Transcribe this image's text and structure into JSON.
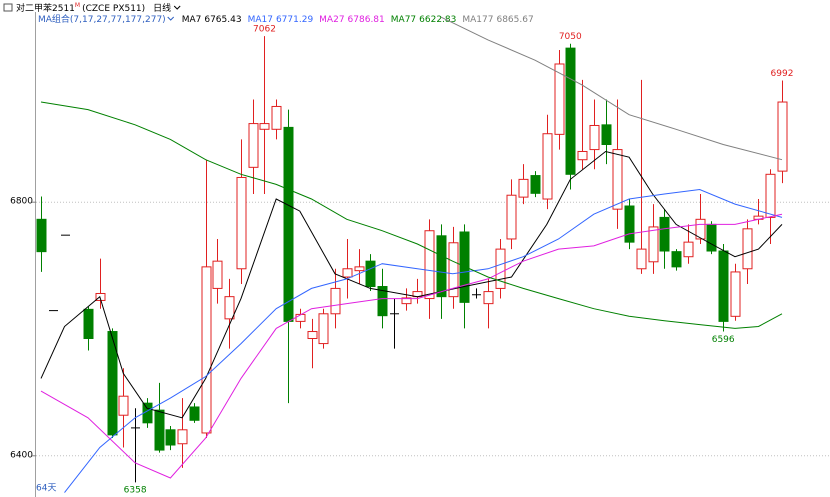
{
  "chart_data": {
    "type": "candlestick",
    "title": "对二甲苯2511",
    "title_superscript": "M",
    "subtitle": "(CZCE PX511)",
    "period": "日线",
    "ma_group": "MA组合(7,17,27,77,177,277)",
    "range_label": "64天",
    "ylim": [
      6335,
      7100
    ],
    "yticks": [
      6400,
      6800
    ],
    "grid": true,
    "up_color": "#e02020",
    "down_color": "#008000",
    "flat_color": "#000000",
    "labeled_highs": [
      19,
      45,
      63
    ],
    "labeled_lows": [
      8,
      58
    ],
    "open": [
      6773,
      6629,
      6748,
      null,
      6631,
      6645,
      6596,
      6464,
      6444,
      6483,
      6472,
      6441,
      6419,
      6477,
      6436,
      6664,
      6616,
      6695,
      6855,
      6915,
      6915,
      6918,
      6612,
      6585,
      6577,
      6624,
      6682,
      6692,
      6707,
      6667,
      6624,
      6640,
      6651,
      6648,
      6747,
      6651,
      6753,
      6654,
      6640,
      6664,
      6742,
      6808,
      6842,
      6805,
      6907,
      7043,
      6867,
      6883,
      6922,
      6789,
      6794,
      6695,
      6706,
      6776,
      6722,
      6714,
      6742,
      6765,
      6723,
      6620,
      6695,
      6773,
      6776,
      6849
    ],
    "high": [
      6809,
      6629,
      6748,
      null,
      6635,
      6711,
      6601,
      6538,
      6475,
      6491,
      6515,
      6447,
      6491,
      6483,
      6867,
      6742,
      6679,
      6899,
      6962,
      7062,
      6962,
      6946,
      6632,
      6616,
      6632,
      6695,
      6742,
      6726,
      6718,
      6695,
      6648,
      6664,
      6679,
      6773,
      6765,
      6761,
      6765,
      6664,
      6679,
      6742,
      6836,
      6860,
      6849,
      6938,
      7040,
      7050,
      6993,
      6962,
      6962,
      6962,
      6805,
      6993,
      6797,
      6789,
      6726,
      6765,
      6813,
      6770,
      6734,
      6703,
      6773,
      6805,
      6852,
      6992
    ],
    "low": [
      6690,
      6629,
      6748,
      null,
      6566,
      6632,
      6428,
      6413,
      6358,
      6444,
      6405,
      6409,
      6381,
      6452,
      6428,
      6640,
      6569,
      6671,
      6813,
      6813,
      6899,
      6483,
      6601,
      6538,
      6569,
      6601,
      6648,
      6671,
      6660,
      6601,
      6569,
      6629,
      6640,
      6616,
      6616,
      6632,
      6601,
      6648,
      6601,
      6648,
      6726,
      6797,
      6808,
      6789,
      6883,
      6820,
      6852,
      6852,
      6860,
      6758,
      6726,
      6687,
      6687,
      6695,
      6692,
      6703,
      6734,
      6718,
      6596,
      6613,
      6671,
      6765,
      6734,
      6830
    ],
    "close": [
      6722,
      6629,
      6748,
      null,
      6585,
      6656,
      6433,
      6494,
      6444,
      6452,
      6409,
      6417,
      6441,
      6456,
      6698,
      6707,
      6651,
      6839,
      6924,
      6924,
      6951,
      6612,
      6623,
      6596,
      6624,
      6664,
      6695,
      6698,
      6667,
      6621,
      6624,
      6649,
      6659,
      6755,
      6651,
      6736,
      6642,
      6654,
      6659,
      6726,
      6811,
      6836,
      6814,
      6908,
      7018,
      6844,
      6880,
      6921,
      6891,
      6883,
      6737,
      6726,
      6761,
      6723,
      6698,
      6737,
      6773,
      6723,
      6612,
      6690,
      6758,
      6778,
      6844,
      6958
    ],
    "series": [
      {
        "name": "MA7",
        "color": "#000000",
        "last_value": 6765.43,
        "x": [
          0,
          2,
          5,
          7,
          9,
          12,
          14,
          17,
          20,
          22,
          25,
          28,
          32,
          36,
          40,
          43,
          45,
          48,
          50,
          52,
          54,
          57,
          59,
          61,
          63
        ],
        "values": [
          6522,
          6604,
          6651,
          6530,
          6475,
          6460,
          6522,
          6648,
          6805,
          6786,
          6687,
          6664,
          6651,
          6667,
          6682,
          6765,
          6836,
          6880,
          6871,
          6813,
          6765,
          6734,
          6714,
          6726,
          6765
        ]
      },
      {
        "name": "MA17",
        "color": "#3366ff",
        "last_value": 6771.29,
        "x": [
          2,
          5,
          8,
          11,
          14,
          17,
          20,
          23,
          26,
          29,
          32,
          35,
          38,
          41,
          44,
          47,
          50,
          53,
          56,
          59,
          63
        ],
        "values": [
          6342,
          6413,
          6460,
          6491,
          6525,
          6577,
          6632,
          6664,
          6679,
          6703,
          6695,
          6687,
          6695,
          6714,
          6742,
          6781,
          6805,
          6813,
          6820,
          6797,
          6776
        ]
      },
      {
        "name": "MA27",
        "color": "#e020e0",
        "last_value": 6786.81,
        "x": [
          0,
          4,
          8,
          11,
          14,
          17,
          20,
          23,
          26,
          29,
          32,
          35,
          38,
          41,
          44,
          47,
          50,
          53,
          56,
          59,
          63
        ],
        "values": [
          6502,
          6460,
          6389,
          6365,
          6428,
          6522,
          6601,
          6632,
          6640,
          6648,
          6648,
          6664,
          6679,
          6707,
          6726,
          6731,
          6750,
          6758,
          6765,
          6765,
          6781
        ]
      },
      {
        "name": "MA77",
        "color": "#008000",
        "last_value": 6622.83,
        "x": [
          0,
          4,
          8,
          11,
          14,
          17,
          20,
          23,
          26,
          29,
          32,
          35,
          38,
          41,
          44,
          47,
          50,
          53,
          56,
          59,
          61,
          63
        ],
        "values": [
          6958,
          6946,
          6922,
          6899,
          6867,
          6844,
          6828,
          6805,
          6773,
          6755,
          6734,
          6707,
          6682,
          6664,
          6648,
          6632,
          6620,
          6613,
          6607,
          6601,
          6604,
          6624
        ]
      },
      {
        "name": "MA177",
        "color": "#808080",
        "last_value": 6865.67,
        "x": [
          34,
          38,
          42,
          46,
          50,
          54,
          58,
          63
        ],
        "values": [
          7092,
          7056,
          7024,
          6985,
          6938,
          6915,
          6891,
          6867
        ]
      }
    ]
  }
}
